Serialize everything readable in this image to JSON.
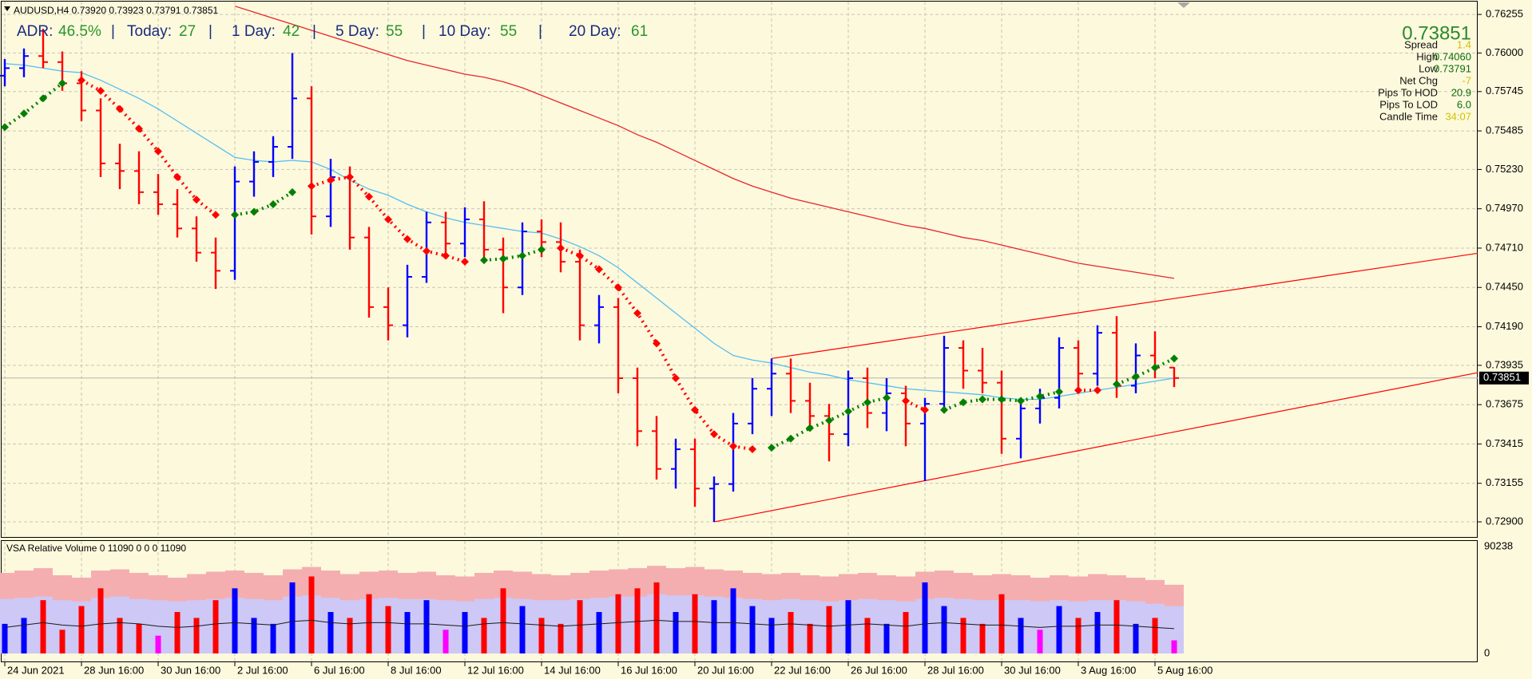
{
  "chart_data": [
    {
      "type": "ohlc",
      "symbol_line": "AUDUSD,H4  0.73920 0.73923 0.73791 0.73851",
      "adr_panel": [
        {
          "label": "ADR:",
          "value": "46.5%"
        },
        {
          "label": "Today:",
          "value": 27
        },
        {
          "label": "1 Day:",
          "value": 42
        },
        {
          "label": "5 Day:",
          "value": 55
        },
        {
          "label": "10 Day:",
          "value": 55
        },
        {
          "label": "20 Day:",
          "value": 61
        }
      ],
      "separator": "|",
      "info_panel": {
        "price": "0.73851",
        "rows": [
          {
            "label": "Spread",
            "value": "1.4",
            "color": "#d2be00"
          },
          {
            "label": "High",
            "value": "0.74060",
            "color": "#0a6e0a"
          },
          {
            "label": "Low",
            "value": "0.73791",
            "color": "#0a6e0a"
          },
          {
            "label": "Net Chg",
            "value": "-7",
            "color": "#d2be00"
          },
          {
            "label": "Pips To HOD",
            "value": "20.9",
            "color": "#0a6e0a"
          },
          {
            "label": "Pips To LOD",
            "value": "6.0",
            "color": "#0a6e0a"
          },
          {
            "label": "Candle Time",
            "value": "34:07",
            "color": "#d2be00"
          }
        ]
      },
      "categories": [
        "24 Jun 2021",
        null,
        null,
        null,
        "28 Jun 16:00",
        null,
        null,
        null,
        "30 Jun 16:00",
        null,
        null,
        null,
        "2 Jul 16:00",
        null,
        null,
        null,
        "6 Jul 16:00",
        null,
        null,
        null,
        "8 Jul 16:00",
        null,
        null,
        null,
        "12 Jul 16:00",
        null,
        null,
        null,
        "14 Jul 16:00",
        null,
        null,
        null,
        "16 Jul 16:00",
        null,
        null,
        null,
        "20 Jul 16:00",
        null,
        null,
        null,
        "22 Jul 16:00",
        null,
        null,
        null,
        "26 Jul 16:00",
        null,
        null,
        null,
        "28 Jul 16:00",
        null,
        null,
        null,
        "30 Jul 16:00",
        null,
        null,
        null,
        "3 Aug 16:00",
        null,
        null,
        null,
        "5 Aug 16:00",
        null
      ],
      "open": [
        0.7585,
        0.759,
        0.7598,
        0.7594,
        0.758,
        0.7562,
        0.7527,
        0.7522,
        0.7508,
        0.75,
        0.7484,
        0.7468,
        0.7456,
        0.7515,
        0.7528,
        0.7538,
        0.757,
        0.7492,
        0.7518,
        0.7478,
        0.7432,
        0.742,
        0.7452,
        0.7488,
        0.7474,
        0.749,
        0.747,
        0.7445,
        0.7482,
        0.7475,
        0.7462,
        0.742,
        0.7432,
        0.7385,
        0.735,
        0.7325,
        0.7338,
        0.7312,
        0.7315,
        0.7355,
        0.7378,
        0.7388,
        0.737,
        0.736,
        0.7348,
        0.7385,
        0.7362,
        0.7375,
        0.7355,
        0.7368,
        0.7405,
        0.739,
        0.7382,
        0.7345,
        0.7365,
        0.7372,
        0.7405,
        0.7388,
        0.7415,
        0.738,
        0.74,
        0.7392
      ],
      "high": [
        0.7596,
        0.7603,
        0.7616,
        0.7601,
        0.7588,
        0.757,
        0.754,
        0.7535,
        0.752,
        0.751,
        0.7492,
        0.7478,
        0.7525,
        0.7535,
        0.7545,
        0.76,
        0.7578,
        0.753,
        0.7525,
        0.7485,
        0.7445,
        0.746,
        0.7495,
        0.7495,
        0.7498,
        0.7502,
        0.7478,
        0.7488,
        0.749,
        0.7488,
        0.747,
        0.744,
        0.7438,
        0.7392,
        0.736,
        0.7345,
        0.7345,
        0.732,
        0.7362,
        0.7385,
        0.7398,
        0.7398,
        0.7382,
        0.7368,
        0.739,
        0.7392,
        0.7385,
        0.738,
        0.7372,
        0.7413,
        0.741,
        0.7405,
        0.739,
        0.7372,
        0.7378,
        0.7412,
        0.741,
        0.742,
        0.7426,
        0.7408,
        0.7416,
        0.73923
      ],
      "low": [
        0.7578,
        0.7584,
        0.759,
        0.7575,
        0.7555,
        0.7518,
        0.751,
        0.75,
        0.7493,
        0.7478,
        0.7462,
        0.7444,
        0.745,
        0.7505,
        0.7518,
        0.753,
        0.748,
        0.7485,
        0.747,
        0.7425,
        0.741,
        0.7412,
        0.7448,
        0.7468,
        0.7465,
        0.7462,
        0.7428,
        0.744,
        0.7465,
        0.7455,
        0.741,
        0.7408,
        0.7375,
        0.734,
        0.7318,
        0.7312,
        0.73,
        0.729,
        0.731,
        0.7348,
        0.736,
        0.7362,
        0.7352,
        0.733,
        0.734,
        0.7352,
        0.735,
        0.734,
        0.7317,
        0.7362,
        0.7378,
        0.7375,
        0.7335,
        0.7332,
        0.7355,
        0.7365,
        0.7378,
        0.738,
        0.7372,
        0.7375,
        0.7385,
        0.73791
      ],
      "close": [
        0.759,
        0.7598,
        0.7594,
        0.758,
        0.7562,
        0.7527,
        0.7522,
        0.7508,
        0.75,
        0.7484,
        0.7468,
        0.7456,
        0.7515,
        0.7528,
        0.7538,
        0.757,
        0.7492,
        0.7518,
        0.7478,
        0.7432,
        0.742,
        0.7452,
        0.7488,
        0.7474,
        0.749,
        0.747,
        0.7445,
        0.7482,
        0.7475,
        0.7462,
        0.742,
        0.7432,
        0.7385,
        0.735,
        0.7325,
        0.7338,
        0.7312,
        0.7315,
        0.7355,
        0.7378,
        0.7388,
        0.737,
        0.736,
        0.7348,
        0.7385,
        0.7362,
        0.7375,
        0.7355,
        0.7368,
        0.7405,
        0.739,
        0.7382,
        0.7345,
        0.7365,
        0.7372,
        0.7405,
        0.7388,
        0.7415,
        0.738,
        0.74,
        0.7392,
        0.73851
      ],
      "up_color": "#0000ff",
      "down_color": "#ff0000",
      "ylim": [
        0.728,
        0.7634
      ],
      "yticks": [
        0.76255,
        {
          "value": 0.76,
          "label": "0.76000"
        },
        0.75745,
        0.75485,
        {
          "value": 0.7523,
          "label": "0.75230"
        },
        {
          "value": 0.7497,
          "label": "0.74970"
        },
        {
          "value": 0.7471,
          "label": "0.74710"
        },
        {
          "value": 0.7445,
          "label": "0.74450"
        },
        {
          "value": 0.7419,
          "label": "0.74190"
        },
        0.73935,
        0.73675,
        0.73415,
        0.73155,
        {
          "value": 0.729,
          "label": "0.72900"
        }
      ],
      "grid": true,
      "last_price": 0.73851,
      "overlays": [
        {
          "color": "#55bff0",
          "values": [
            0.7593,
            0.7592,
            0.759,
            0.7588,
            0.7587,
            0.7582,
            0.7576,
            0.757,
            0.7563,
            0.7555,
            0.7547,
            0.7539,
            0.7531,
            0.7529,
            0.7528,
            0.7529,
            0.7528,
            0.7523,
            0.7516,
            0.751,
            0.7506,
            0.75,
            0.7495,
            0.7491,
            0.7488,
            0.7486,
            0.7484,
            0.7482,
            0.7481,
            0.7477,
            0.7472,
            0.7466,
            0.7458,
            0.7448,
            0.7438,
            0.7428,
            0.7418,
            0.7408,
            0.74,
            0.7397,
            0.7395,
            0.7392,
            0.7389,
            0.7387,
            0.7384,
            0.7382,
            0.738,
            0.7378,
            0.7377,
            0.7376,
            0.7375,
            0.7374,
            0.7372,
            0.7371,
            0.7371,
            0.7373,
            0.7375,
            0.7377,
            0.7379,
            0.7381,
            0.7383,
            0.7385
          ]
        },
        {
          "color": "#e8262b",
          "values": [
            null,
            null,
            null,
            null,
            null,
            null,
            null,
            null,
            null,
            null,
            null,
            null,
            0.7631,
            0.7627,
            0.7623,
            0.7619,
            0.7615,
            0.7611,
            0.7607,
            0.7603,
            0.7599,
            0.7595,
            0.7592,
            0.7589,
            0.7586,
            0.7584,
            0.7581,
            0.7577,
            0.7572,
            0.7567,
            0.7562,
            0.7557,
            0.7552,
            0.7546,
            0.7541,
            0.7535,
            0.7529,
            0.7523,
            0.7517,
            0.7512,
            0.7508,
            0.7504,
            0.7501,
            0.7498,
            0.7495,
            0.7492,
            0.7489,
            0.7486,
            0.7484,
            0.7481,
            0.7478,
            0.7476,
            0.7473,
            0.747,
            0.7467,
            0.7464,
            0.7461,
            0.7459,
            0.7457,
            0.7455,
            0.7453,
            0.7451
          ]
        }
      ],
      "trend": {
        "values": [
          0.7551,
          0.756,
          0.757,
          0.758,
          0.7582,
          0.7575,
          0.7563,
          0.755,
          0.7535,
          0.7518,
          0.7503,
          0.7493,
          0.7493,
          0.7495,
          0.75,
          0.7508,
          0.7512,
          0.7516,
          0.7518,
          0.7505,
          0.749,
          0.7477,
          0.7469,
          0.7466,
          0.7462,
          0.7463,
          0.7464,
          0.7466,
          0.747,
          0.7471,
          0.7466,
          0.7457,
          0.7445,
          0.7428,
          0.7408,
          0.7385,
          0.7364,
          0.7348,
          0.734,
          0.7338,
          0.7339,
          0.7345,
          0.7352,
          0.7357,
          0.7363,
          0.7369,
          0.7372,
          0.737,
          0.7364,
          0.7364,
          0.7369,
          0.7371,
          0.7371,
          0.737,
          0.7373,
          0.7376,
          0.7377,
          0.7377,
          0.7381,
          0.7386,
          0.7392,
          0.7398
        ],
        "colors": [
          "#008000",
          "#008000",
          "#008000",
          "#008000",
          "#ff0000",
          "#ff0000",
          "#ff0000",
          "#ff0000",
          "#ff0000",
          "#ff0000",
          "#ff0000",
          "#ff0000",
          "#008000",
          "#008000",
          "#008000",
          "#008000",
          "#ff0000",
          "#ff0000",
          "#ff0000",
          "#ff0000",
          "#ff0000",
          "#ff0000",
          "#ff0000",
          "#ff0000",
          "#ff0000",
          "#008000",
          "#008000",
          "#008000",
          "#008000",
          "#ff0000",
          "#ff0000",
          "#ff0000",
          "#ff0000",
          "#ff0000",
          "#ff0000",
          "#ff0000",
          "#ff0000",
          "#ff0000",
          "#ff0000",
          "#ff0000",
          "#008000",
          "#008000",
          "#008000",
          "#008000",
          "#008000",
          "#008000",
          "#008000",
          "#ff0000",
          "#ff0000",
          "#008000",
          "#008000",
          "#008000",
          "#008000",
          "#008000",
          "#008000",
          "#008000",
          "#ff0000",
          "#ff0000",
          "#008000",
          "#008000",
          "#008000",
          "#008000"
        ]
      },
      "trendlines": [
        {
          "color": "#ff0000",
          "x": [
            40,
            58
          ],
          "values": [
            0.7398,
            0.7432
          ]
        },
        {
          "color": "#ff0000",
          "x": [
            37,
            58
          ],
          "values": [
            0.729,
            0.7342
          ]
        }
      ]
    },
    {
      "type": "bar",
      "title": "VSA Relative Volume 0 11090 0 0 0 11090",
      "values": [
        25000,
        30000,
        45000,
        20000,
        40000,
        55000,
        30000,
        25000,
        15000,
        35000,
        30000,
        45000,
        55000,
        30000,
        25000,
        60000,
        65000,
        35000,
        30000,
        50000,
        40000,
        35000,
        45000,
        20000,
        35000,
        30000,
        55000,
        40000,
        30000,
        25000,
        45000,
        35000,
        50000,
        55000,
        60000,
        35000,
        50000,
        45000,
        55000,
        40000,
        30000,
        35000,
        25000,
        40000,
        45000,
        30000,
        25000,
        35000,
        60000,
        40000,
        30000,
        25000,
        50000,
        30000,
        20000,
        40000,
        30000,
        35000,
        45000,
        25000,
        30000,
        11090
      ],
      "colors": [
        "blue",
        "blue",
        "red",
        "red",
        "red",
        "red",
        "red",
        "red",
        "magenta",
        "red",
        "red",
        "red",
        "blue",
        "blue",
        "blue",
        "blue",
        "red",
        "blue",
        "red",
        "red",
        "red",
        "blue",
        "blue",
        "magenta",
        "blue",
        "red",
        "red",
        "blue",
        "red",
        "red",
        "red",
        "blue",
        "red",
        "red",
        "red",
        "blue",
        "red",
        "blue",
        "blue",
        "blue",
        "blue",
        "red",
        "red",
        "red",
        "blue",
        "red",
        "blue",
        "red",
        "blue",
        "blue",
        "red",
        "red",
        "red",
        "blue",
        "magenta",
        "blue",
        "red",
        "blue",
        "red",
        "blue",
        "red",
        "magenta"
      ],
      "bands": [
        {
          "color": "#f4aeb0",
          "values": [
            68000,
            70000,
            72000,
            66000,
            64000,
            70000,
            71000,
            68000,
            66000,
            64000,
            67000,
            69000,
            70000,
            68000,
            66000,
            71000,
            73000,
            70000,
            67000,
            69000,
            70000,
            68000,
            69000,
            66000,
            65000,
            68000,
            70000,
            69000,
            67000,
            66000,
            68000,
            70000,
            71000,
            72000,
            74000,
            72000,
            73000,
            71000,
            70000,
            68000,
            67000,
            68000,
            66000,
            65000,
            67000,
            68000,
            66000,
            65000,
            69000,
            70000,
            68000,
            66000,
            67000,
            66000,
            64000,
            66000,
            65000,
            67000,
            66000,
            64000,
            62000,
            58000
          ]
        },
        {
          "color": "#cdc8f5",
          "values": [
            46000,
            47000,
            48000,
            45000,
            44000,
            47000,
            48000,
            46000,
            45000,
            44000,
            45000,
            46000,
            47000,
            46000,
            45000,
            48000,
            49000,
            47000,
            45000,
            46000,
            47000,
            46000,
            46000,
            45000,
            44000,
            46000,
            47000,
            46000,
            45000,
            45000,
            46000,
            47000,
            48000,
            48000,
            50000,
            49000,
            49000,
            48000,
            47000,
            46000,
            45000,
            46000,
            45000,
            44000,
            45000,
            46000,
            45000,
            44000,
            46000,
            47000,
            46000,
            45000,
            45000,
            45000,
            44000,
            45000,
            44000,
            45000,
            45000,
            44000,
            42000,
            40000
          ]
        }
      ],
      "line": {
        "color": "#1a1a1a",
        "values": [
          22000,
          24000,
          26000,
          24000,
          23000,
          25000,
          26000,
          25000,
          23000,
          22000,
          23000,
          25000,
          26000,
          25000,
          24000,
          27000,
          28000,
          26000,
          25000,
          26000,
          26000,
          25000,
          25000,
          24000,
          23000,
          25000,
          26000,
          25000,
          24000,
          23000,
          24000,
          25000,
          26000,
          27000,
          28000,
          27000,
          27000,
          26000,
          26000,
          25000,
          24000,
          25000,
          24000,
          23000,
          24000,
          25000,
          24000,
          23000,
          25000,
          26000,
          25000,
          24000,
          24000,
          23000,
          22000,
          23000,
          23000,
          24000,
          24000,
          23000,
          22000,
          21000
        ]
      },
      "ylim": [
        0,
        90238
      ],
      "yticks": [
        90238,
        0
      ]
    }
  ]
}
